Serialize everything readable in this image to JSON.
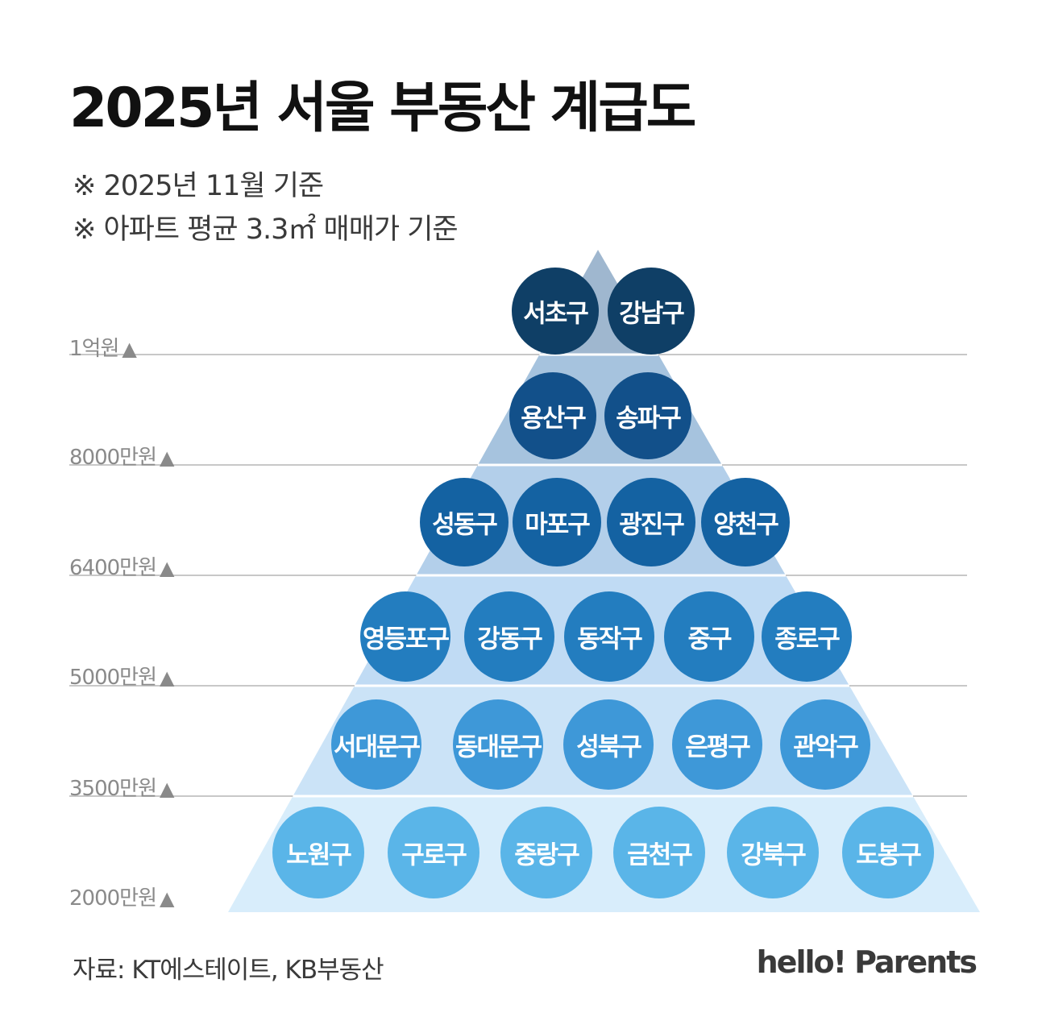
{
  "title": "2025년 서울 부동산 계급도",
  "notes": [
    "※ 2025년 11월 기준",
    "※ 아파트 평균 3.3㎡ 매매가 기준"
  ],
  "level_labels": [
    "1억원",
    "8000만원",
    "6400만원",
    "5000만원",
    "3500만원",
    "2000만원"
  ],
  "level_marker": "▲",
  "tiers": [
    {
      "color": "#0f3f66",
      "districts": [
        "서초구",
        "강남구"
      ]
    },
    {
      "color": "#12508a",
      "districts": [
        "용산구",
        "송파구"
      ]
    },
    {
      "color": "#1462a2",
      "districts": [
        "성동구",
        "마포구",
        "광진구",
        "양천구"
      ]
    },
    {
      "color": "#237dbf",
      "districts": [
        "영등포구",
        "강동구",
        "동작구",
        "중구",
        "종로구"
      ]
    },
    {
      "color": "#3e98d8",
      "districts": [
        "서대문구",
        "동대문구",
        "성북구",
        "은평구",
        "관악구"
      ]
    },
    {
      "color": "#5ab5e8",
      "districts": [
        "노원구",
        "구로구",
        "중랑구",
        "금천구",
        "강북구",
        "도봉구"
      ]
    }
  ],
  "band_colors": [
    "#9fb7cf",
    "#a6c3de",
    "#b3cfea",
    "#c0dbf4",
    "#cbe3f7",
    "#d8edfb"
  ],
  "source": "자료: KT에스테이트, KB부동산",
  "brand": "hello! Parents"
}
